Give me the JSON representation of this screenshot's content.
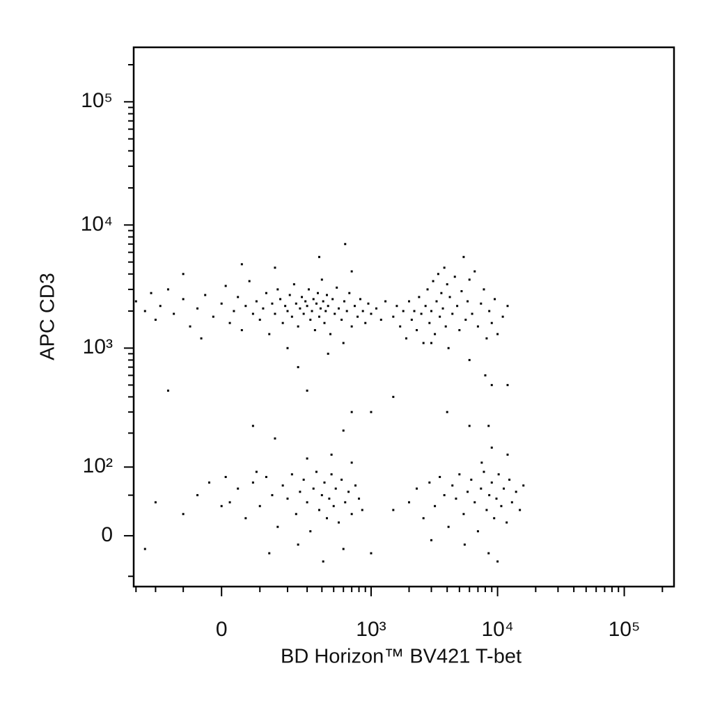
{
  "chart_data": {
    "type": "scatter",
    "x_label": "BD Horizon™ BV421 T-bet",
    "y_label": "APC CD3",
    "xscale": "biexponential",
    "yscale": "biexponential",
    "color": "#000000",
    "xlim": [
      -314,
      247000
    ],
    "ylim": [
      -66,
      277000
    ],
    "xticks": [
      0,
      {
        "value": 1000,
        "label": "10³"
      },
      {
        "value": 10000,
        "label": "10⁴"
      },
      {
        "value": 100000,
        "label": "10⁵"
      }
    ],
    "yticks": [
      0,
      {
        "value": 100,
        "label": "10²"
      },
      {
        "value": 1000,
        "label": "10³"
      },
      {
        "value": 10000,
        "label": "10⁴"
      },
      {
        "value": 100000,
        "label": "10⁵"
      }
    ],
    "xminorticks": [
      -300,
      -200,
      -100,
      100,
      200,
      300,
      400,
      500,
      600,
      700,
      800,
      900,
      2000,
      3000,
      4000,
      5000,
      6000,
      7000,
      8000,
      9000,
      20000,
      30000,
      40000,
      50000,
      60000,
      70000,
      80000,
      90000,
      200000
    ],
    "yminorticks": [
      -50,
      50,
      200,
      300,
      400,
      500,
      600,
      700,
      800,
      900,
      2000,
      3000,
      4000,
      5000,
      6000,
      7000,
      8000,
      9000,
      20000,
      30000,
      40000,
      50000,
      60000,
      70000,
      80000,
      90000,
      200000
    ],
    "x": [
      -300,
      -250,
      -220,
      -200,
      -180,
      -150,
      -130,
      -100,
      -80,
      -60,
      -40,
      -20,
      0,
      10,
      20,
      30,
      40,
      50,
      60,
      70,
      80,
      90,
      100,
      110,
      120,
      130,
      140,
      150,
      160,
      170,
      180,
      190,
      200,
      210,
      220,
      230,
      240,
      250,
      260,
      270,
      280,
      290,
      300,
      310,
      320,
      330,
      340,
      350,
      360,
      370,
      380,
      390,
      400,
      410,
      420,
      430,
      440,
      450,
      470,
      490,
      510,
      530,
      550,
      580,
      610,
      640,
      670,
      700,
      740,
      780,
      820,
      860,
      900,
      950,
      1000,
      1100,
      1200,
      1300,
      620,
      380,
      -100,
      50,
      200,
      600,
      150,
      -50,
      700,
      450,
      250,
      1500,
      1600,
      1700,
      1800,
      1900,
      2000,
      2100,
      2200,
      2300,
      2400,
      2500,
      2600,
      2700,
      2800,
      2900,
      3000,
      3100,
      3200,
      3300,
      3400,
      3500,
      3600,
      3700,
      3800,
      3900,
      4000,
      4200,
      4400,
      4600,
      4800,
      5000,
      5200,
      5400,
      5600,
      5800,
      6000,
      6300,
      6600,
      7000,
      7400,
      7800,
      8200,
      8600,
      9000,
      9500,
      10000,
      11000,
      12000,
      4100,
      3000,
      6000,
      8000,
      9000,
      12000,
      20,
      40,
      60,
      80,
      100,
      120,
      140,
      160,
      180,
      200,
      220,
      240,
      260,
      280,
      300,
      320,
      340,
      360,
      380,
      400,
      420,
      440,
      460,
      480,
      500,
      520,
      550,
      580,
      620,
      660,
      700,
      750,
      800,
      850,
      -60,
      -100,
      -30,
      0,
      10,
      130,
      250,
      410,
      600,
      700,
      480,
      300,
      -200,
      -250,
      1000,
      90,
      2000,
      2300,
      2600,
      2900,
      3200,
      3500,
      3800,
      4100,
      4400,
      4700,
      5000,
      5400,
      5800,
      6200,
      6600,
      7000,
      7400,
      7800,
      8200,
      8600,
      9000,
      9400,
      9800,
      10200,
      10700,
      11200,
      11800,
      12400,
      13000,
      14000,
      15000,
      16000,
      7500,
      9000,
      12000,
      8500,
      5500,
      3000,
      10000,
      1500,
      700,
      1000,
      1500,
      4000,
      6000,
      8500,
      80,
      150,
      600,
      -150,
      300
    ],
    "values": [
      2400,
      2000,
      2800,
      1700,
      2200,
      3000,
      1900,
      2500,
      1500,
      2100,
      2700,
      1800,
      2300,
      3200,
      1600,
      2000,
      2600,
      1400,
      2200,
      3500,
      1900,
      2400,
      1700,
      2100,
      2800,
      1300,
      2300,
      1900,
      3000,
      2500,
      1600,
      2200,
      2000,
      2700,
      1800,
      3300,
      2300,
      1500,
      2100,
      2600,
      1900,
      2400,
      2200,
      3000,
      1700,
      2000,
      2500,
      1400,
      2300,
      2800,
      1800,
      2100,
      3600,
      2400,
      1600,
      2000,
      2700,
      2200,
      1300,
      2500,
      1900,
      3100,
      2100,
      1700,
      2400,
      2000,
      2800,
      1500,
      2200,
      1800,
      2500,
      2000,
      1600,
      2300,
      1900,
      2100,
      1700,
      2400,
      7000,
      5500,
      4000,
      4800,
      1000,
      1100,
      4500,
      1200,
      4200,
      900,
      700,
      1800,
      2200,
      1500,
      2000,
      1200,
      2400,
      1700,
      2000,
      1400,
      2600,
      1900,
      1100,
      2200,
      3000,
      1600,
      2000,
      3500,
      1300,
      2400,
      4000,
      1800,
      2800,
      2100,
      4500,
      1500,
      3300,
      2600,
      1900,
      3800,
      2200,
      1400,
      2900,
      5500,
      1700,
      2400,
      3600,
      1900,
      4200,
      1500,
      2300,
      3000,
      1200,
      2000,
      1600,
      2500,
      1300,
      1800,
      2200,
      1000,
      1100,
      800,
      600,
      500,
      500,
      40,
      60,
      20,
      70,
      35,
      80,
      50,
      10,
      65,
      45,
      85,
      25,
      55,
      75,
      40,
      5,
      60,
      90,
      30,
      50,
      70,
      20,
      45,
      85,
      35,
      60,
      15,
      75,
      40,
      55,
      25,
      65,
      45,
      30,
      50,
      25,
      70,
      35,
      80,
      -20,
      -10,
      -30,
      -15,
      110,
      130,
      120,
      40,
      -15,
      -20,
      90,
      40,
      60,
      20,
      70,
      35,
      80,
      50,
      10,
      65,
      45,
      85,
      25,
      55,
      75,
      40,
      5,
      60,
      90,
      30,
      50,
      70,
      20,
      45,
      85,
      35,
      60,
      15,
      75,
      40,
      55,
      30,
      65,
      110,
      150,
      130,
      -20,
      -10,
      -5,
      -30,
      30,
      300,
      300,
      400,
      300,
      230,
      230,
      230,
      180,
      210,
      450,
      450
    ]
  }
}
